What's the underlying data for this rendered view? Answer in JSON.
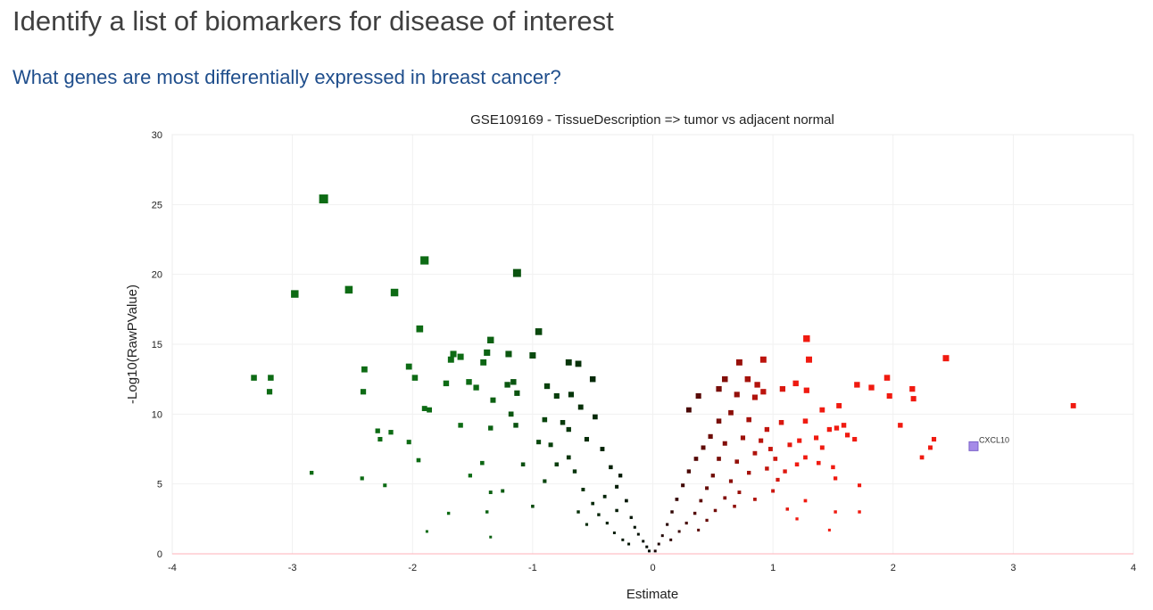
{
  "slide": {
    "title": "Identify a list of biomarkers for disease of interest",
    "subtitle": "What genes are most differentially expressed in breast cancer?"
  },
  "colors": {
    "down": "#0d6b14",
    "up": "#f01a10",
    "highlight": "#a58be8",
    "title": "#404040",
    "subtitle": "#1f4e8c"
  },
  "chart_data": {
    "type": "scatter",
    "title": "GSE109169 - TissueDescription => tumor vs adjacent normal",
    "xlabel": "Estimate",
    "ylabel": "-Log10(RawPValue)",
    "xlim": [
      -4,
      4
    ],
    "ylim": [
      0,
      30
    ],
    "xticks": [
      "-4",
      "-3",
      "-2",
      "-1",
      "0",
      "1",
      "2",
      "3",
      "4"
    ],
    "yticks": [
      "0",
      "5",
      "10",
      "15",
      "20",
      "25",
      "30"
    ],
    "grid": true,
    "annotation": {
      "label": "CXCL10",
      "x": 2.67,
      "y": 7.7
    },
    "series": [
      {
        "values": [
          [
            -2.74,
            25.4
          ],
          [
            -1.9,
            21.0
          ],
          [
            -1.13,
            20.1
          ],
          [
            -2.98,
            18.6
          ],
          [
            -2.53,
            18.9
          ],
          [
            -2.15,
            18.7
          ],
          [
            -1.94,
            16.1
          ],
          [
            -0.95,
            15.9
          ],
          [
            -1.35,
            15.3
          ],
          [
            -1.38,
            14.4
          ],
          [
            -1.66,
            14.3
          ],
          [
            -1.6,
            14.1
          ],
          [
            -1.68,
            13.9
          ],
          [
            -1.41,
            13.7
          ],
          [
            -1.0,
            14.2
          ],
          [
            -0.7,
            13.7
          ],
          [
            -0.62,
            13.6
          ],
          [
            -1.2,
            14.3
          ],
          [
            -3.32,
            12.6
          ],
          [
            -3.18,
            12.6
          ],
          [
            -3.19,
            11.6
          ],
          [
            -2.4,
            13.2
          ],
          [
            -2.41,
            11.6
          ],
          [
            -2.03,
            13.4
          ],
          [
            -1.98,
            12.6
          ],
          [
            -1.9,
            10.4
          ],
          [
            -1.86,
            10.3
          ],
          [
            -1.72,
            12.2
          ],
          [
            -1.53,
            12.3
          ],
          [
            -1.47,
            11.9
          ],
          [
            -1.33,
            11.0
          ],
          [
            -1.21,
            12.1
          ],
          [
            -1.16,
            12.3
          ],
          [
            -1.13,
            11.5
          ],
          [
            -1.18,
            10.0
          ],
          [
            -1.14,
            9.2
          ],
          [
            -1.35,
            9.0
          ],
          [
            -1.42,
            6.5
          ],
          [
            -2.29,
            8.8
          ],
          [
            -2.27,
            8.2
          ],
          [
            -2.18,
            8.7
          ],
          [
            -2.03,
            8.0
          ],
          [
            -1.95,
            6.7
          ],
          [
            -1.6,
            9.2
          ],
          [
            -1.52,
            5.6
          ],
          [
            -0.88,
            12.0
          ],
          [
            -0.8,
            11.3
          ],
          [
            -0.95,
            8.0
          ],
          [
            -1.08,
            6.4
          ],
          [
            -2.84,
            5.8
          ],
          [
            -2.42,
            5.4
          ],
          [
            -2.23,
            4.9
          ],
          [
            -1.35,
            4.4
          ],
          [
            -1.25,
            4.5
          ],
          [
            -1.38,
            3.0
          ],
          [
            -1.7,
            2.9
          ],
          [
            -1.88,
            1.6
          ],
          [
            -1.35,
            1.2
          ],
          [
            -1.0,
            3.4
          ],
          [
            -0.9,
            5.2
          ],
          [
            -0.75,
            9.4
          ],
          [
            -0.68,
            11.4
          ],
          [
            -0.6,
            10.5
          ],
          [
            -0.55,
            8.2
          ],
          [
            -0.5,
            12.5
          ],
          [
            -0.48,
            9.8
          ],
          [
            -0.42,
            7.5
          ],
          [
            -0.35,
            6.2
          ],
          [
            -0.3,
            4.8
          ],
          [
            -0.27,
            5.6
          ],
          [
            -0.22,
            3.8
          ],
          [
            -0.18,
            2.6
          ],
          [
            -0.15,
            1.9
          ],
          [
            -0.12,
            1.4
          ],
          [
            -0.08,
            0.9
          ],
          [
            -0.05,
            0.5
          ],
          [
            -0.03,
            0.2
          ],
          [
            -0.7,
            6.9
          ],
          [
            -0.65,
            5.9
          ],
          [
            -0.58,
            4.6
          ],
          [
            -0.5,
            3.6
          ],
          [
            -0.45,
            2.8
          ],
          [
            -0.38,
            2.2
          ],
          [
            -0.32,
            1.5
          ],
          [
            -0.25,
            1.0
          ],
          [
            -0.2,
            0.7
          ],
          [
            -0.85,
            7.8
          ],
          [
            -0.8,
            6.4
          ],
          [
            -0.62,
            3.0
          ],
          [
            -0.55,
            2.1
          ],
          [
            -0.4,
            4.1
          ],
          [
            -0.3,
            3.1
          ],
          [
            -0.7,
            8.9
          ],
          [
            -0.9,
            9.6
          ]
        ]
      },
      {
        "values": [
          [
            0.72,
            13.7
          ],
          [
            0.92,
            13.9
          ],
          [
            0.79,
            12.5
          ],
          [
            0.87,
            12.1
          ],
          [
            1.28,
            15.4
          ],
          [
            1.3,
            13.9
          ],
          [
            1.19,
            12.2
          ],
          [
            1.08,
            11.8
          ],
          [
            1.28,
            11.7
          ],
          [
            0.92,
            11.6
          ],
          [
            0.85,
            11.2
          ],
          [
            0.7,
            11.4
          ],
          [
            0.6,
            12.5
          ],
          [
            0.55,
            11.8
          ],
          [
            0.38,
            11.3
          ],
          [
            0.3,
            10.3
          ],
          [
            2.44,
            14.0
          ],
          [
            1.95,
            12.6
          ],
          [
            1.82,
            11.9
          ],
          [
            1.7,
            12.1
          ],
          [
            1.97,
            11.3
          ],
          [
            2.16,
            11.8
          ],
          [
            2.17,
            11.1
          ],
          [
            1.55,
            10.6
          ],
          [
            1.59,
            9.2
          ],
          [
            2.06,
            9.2
          ],
          [
            1.41,
            10.3
          ],
          [
            1.27,
            9.5
          ],
          [
            1.07,
            9.4
          ],
          [
            0.95,
            8.9
          ],
          [
            0.9,
            8.1
          ],
          [
            1.14,
            7.8
          ],
          [
            1.22,
            8.1
          ],
          [
            1.36,
            8.3
          ],
          [
            1.47,
            8.9
          ],
          [
            1.53,
            9.0
          ],
          [
            1.62,
            8.5
          ],
          [
            1.68,
            8.2
          ],
          [
            1.41,
            7.6
          ],
          [
            1.38,
            6.5
          ],
          [
            1.27,
            6.9
          ],
          [
            1.2,
            6.4
          ],
          [
            1.1,
            5.9
          ],
          [
            1.04,
            5.3
          ],
          [
            1.02,
            6.8
          ],
          [
            0.98,
            7.5
          ],
          [
            1.5,
            6.2
          ],
          [
            1.52,
            5.4
          ],
          [
            1.72,
            4.9
          ],
          [
            1.52,
            3.0
          ],
          [
            1.47,
            1.7
          ],
          [
            1.27,
            3.8
          ],
          [
            1.2,
            2.5
          ],
          [
            1.12,
            3.2
          ],
          [
            1.0,
            4.5
          ],
          [
            0.85,
            3.9
          ],
          [
            1.72,
            3.0
          ],
          [
            2.31,
            7.6
          ],
          [
            2.34,
            8.2
          ],
          [
            2.24,
            6.9
          ],
          [
            3.5,
            10.6
          ],
          [
            0.65,
            10.1
          ],
          [
            0.55,
            9.5
          ],
          [
            0.48,
            8.4
          ],
          [
            0.42,
            7.6
          ],
          [
            0.36,
            6.8
          ],
          [
            0.3,
            5.9
          ],
          [
            0.25,
            4.9
          ],
          [
            0.2,
            3.9
          ],
          [
            0.16,
            3.0
          ],
          [
            0.12,
            2.1
          ],
          [
            0.08,
            1.3
          ],
          [
            0.05,
            0.7
          ],
          [
            0.02,
            0.2
          ],
          [
            0.6,
            7.9
          ],
          [
            0.55,
            6.8
          ],
          [
            0.5,
            5.6
          ],
          [
            0.45,
            4.7
          ],
          [
            0.4,
            3.8
          ],
          [
            0.35,
            2.9
          ],
          [
            0.28,
            2.2
          ],
          [
            0.22,
            1.6
          ],
          [
            0.15,
            1.0
          ],
          [
            0.8,
            9.6
          ],
          [
            0.75,
            8.3
          ],
          [
            0.7,
            6.6
          ],
          [
            0.65,
            5.2
          ],
          [
            0.6,
            4.0
          ],
          [
            0.52,
            3.1
          ],
          [
            0.45,
            2.4
          ],
          [
            0.38,
            1.7
          ],
          [
            0.85,
            7.2
          ],
          [
            0.8,
            5.8
          ],
          [
            0.72,
            4.4
          ],
          [
            0.68,
            3.4
          ],
          [
            0.95,
            6.1
          ]
        ]
      }
    ]
  }
}
